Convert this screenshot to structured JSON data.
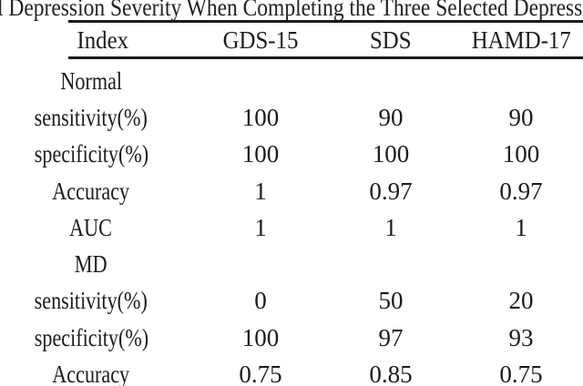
{
  "page": {
    "background_color": "#ffffff",
    "text_color": "#1c1c1c",
    "rule_color": "#1a1a1a"
  },
  "caption": {
    "visible_text": "l Depression Severity When Completing the Three Selected Depress"
  },
  "table": {
    "columns": [
      "Index",
      "GDS-15",
      "SDS",
      "HAMD-17"
    ],
    "sections": [
      {
        "name": "Normal",
        "rows": [
          {
            "label": "sensitivity(%)",
            "values": [
              "100",
              "90",
              "90"
            ]
          },
          {
            "label": "specificity(%)",
            "values": [
              "100",
              "100",
              "100"
            ]
          },
          {
            "label": "Accuracy",
            "values": [
              "1",
              "0.97",
              "0.97"
            ]
          },
          {
            "label": "AUC",
            "values": [
              "1",
              "1",
              "1"
            ]
          }
        ]
      },
      {
        "name": "MD",
        "rows": [
          {
            "label": "sensitivity(%)",
            "values": [
              "0",
              "50",
              "20"
            ]
          },
          {
            "label": "specificity(%)",
            "values": [
              "100",
              "97",
              "93"
            ]
          },
          {
            "label": "Accuracy",
            "values": [
              "0.75",
              "0.85",
              "0.75"
            ]
          }
        ]
      }
    ]
  }
}
